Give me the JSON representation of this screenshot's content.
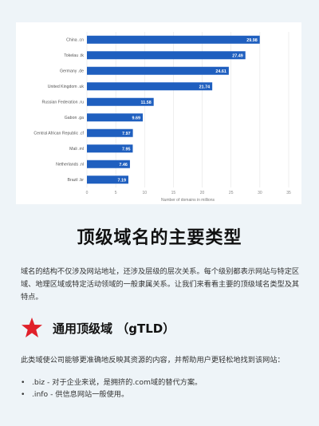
{
  "chart_data": {
    "type": "bar",
    "orientation": "horizontal",
    "categories": [
      "China .cn",
      "Tokelau .tk",
      "Germany .de",
      "United Kingdom .uk",
      "Russian Federation .ru",
      "Gabon .ga",
      "Central African Republic .cf",
      "Mali .ml",
      "Netherlands .nl",
      "Brazil .br"
    ],
    "values": [
      29.98,
      27.49,
      24.61,
      21.74,
      11.58,
      9.69,
      7.97,
      7.95,
      7.46,
      7.19
    ],
    "value_labels": [
      "29.98",
      "27.49",
      "24.61",
      "21.74",
      "11.58",
      "9.69",
      "7.97",
      "7.95",
      "7.46",
      "7.19"
    ],
    "xlim": [
      0,
      35
    ],
    "x_ticks": [
      "0",
      "5",
      "10",
      "15",
      "20",
      "25",
      "30",
      "35"
    ],
    "xlabel": "Number of domains in millions",
    "ylabel": "",
    "title": "",
    "grid": true,
    "bar_color": "#1f5fbf"
  },
  "heading": "顶级域名的主要类型",
  "intro": "域名的结构不仅涉及网站地址，还涉及层级的层次关系。每个级别都表示网站与特定区域、地理区域或特定活动领域的一般隶属关系。让我们来看看主要的顶级域名类型及其特点。",
  "section": {
    "icon": "star-icon",
    "icon_color": "#e0202a",
    "title": "通用顶级域 （gTLD）",
    "text": "此类域使公司能够更准确地反映其资源的内容，并帮助用户更轻松地找到该网站：",
    "bullets": [
      {
        "marker": "•",
        "text": ".biz - 对于企业来说，是拥挤的.com域的替代方案。"
      },
      {
        "marker": "•",
        "text": ".info - 供信息网站一般使用。"
      }
    ]
  }
}
